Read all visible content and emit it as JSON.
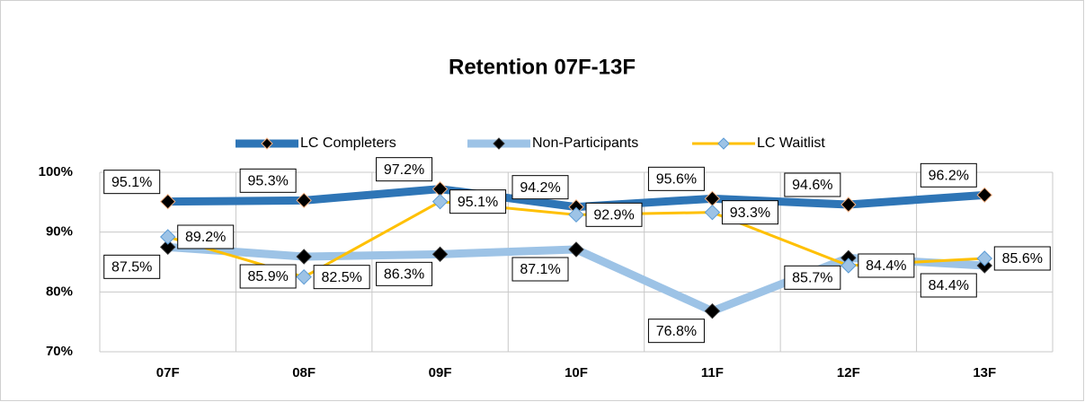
{
  "chart_data": {
    "type": "line",
    "title": "Retention 07F-13F",
    "categories": [
      "07F",
      "08F",
      "09F",
      "10F",
      "11F",
      "12F",
      "13F"
    ],
    "series": [
      {
        "name": "LC Completers",
        "color": "#2e75b6",
        "values": [
          95.1,
          95.3,
          97.2,
          94.2,
          95.6,
          94.6,
          96.2
        ],
        "value_labels": [
          "95.1%",
          "95.3%",
          "97.2%",
          "94.2%",
          "95.6%",
          "94.6%",
          "96.2%"
        ]
      },
      {
        "name": "Non-Participants",
        "color": "#9dc3e6",
        "values": [
          87.5,
          85.9,
          86.3,
          87.1,
          76.8,
          85.7,
          84.4
        ],
        "value_labels": [
          "87.5%",
          "85.9%",
          "86.3%",
          "87.1%",
          "76.8%",
          "85.7%",
          "84.4%"
        ]
      },
      {
        "name": "LC Waitlist",
        "color": "#ffc000",
        "values": [
          89.2,
          82.5,
          95.1,
          92.9,
          93.3,
          84.4,
          85.6
        ],
        "value_labels": [
          "89.2%",
          "82.5%",
          "95.1%",
          "92.9%",
          "93.3%",
          "84.4%",
          "85.6%"
        ]
      }
    ],
    "ylim": [
      70,
      100
    ],
    "yticks": [
      {
        "value": 70,
        "label": "70%"
      },
      {
        "value": 80,
        "label": "80%"
      },
      {
        "value": 90,
        "label": "90%"
      },
      {
        "value": 100,
        "label": "100%"
      }
    ],
    "grid": true,
    "legend": "top"
  }
}
